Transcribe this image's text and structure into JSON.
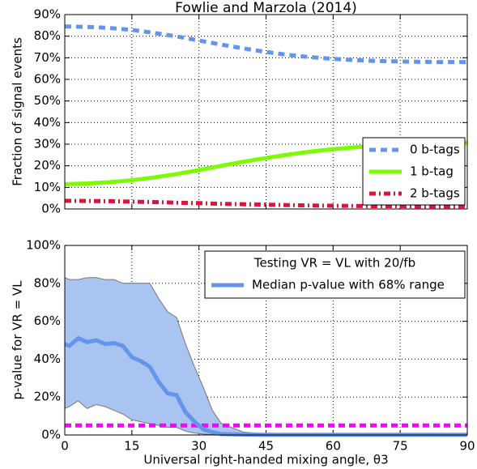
{
  "chart_data": [
    {
      "type": "line",
      "title": "Fowlie and Marzola (2014)",
      "y_label": "Fraction of signal events",
      "xlim": [
        0,
        90
      ],
      "ylim": [
        0,
        90
      ],
      "yticks": [
        {
          "value": 0,
          "label": "0%"
        },
        {
          "value": 10,
          "label": "10%"
        },
        {
          "value": 20,
          "label": "20%"
        },
        {
          "value": 30,
          "label": "30%"
        },
        {
          "value": 40,
          "label": "40%"
        },
        {
          "value": 50,
          "label": "50%"
        },
        {
          "value": 60,
          "label": "60%"
        },
        {
          "value": 70,
          "label": "70%"
        },
        {
          "value": 80,
          "label": "80%"
        },
        {
          "value": 90,
          "label": "90%"
        }
      ],
      "grid": true,
      "legend": "lower right",
      "x": [
        0,
        5,
        10,
        15,
        20,
        25,
        30,
        35,
        40,
        45,
        50,
        55,
        60,
        65,
        70,
        75,
        80,
        85,
        90
      ],
      "series": [
        {
          "name": "0 b-tags",
          "color": "#6495ed",
          "style": "dashed",
          "values": [
            84.5,
            84.3,
            83.8,
            82.9,
            81.5,
            79.9,
            78.0,
            76.1,
            74.3,
            72.7,
            71.3,
            70.3,
            69.5,
            68.9,
            68.5,
            68.3,
            68.1,
            68.0,
            68.0
          ]
        },
        {
          "name": "1 b-tag",
          "color": "#7cfc00",
          "style": "solid",
          "values": [
            11.5,
            11.8,
            12.4,
            13.3,
            14.6,
            16.2,
            18.0,
            20.0,
            21.9,
            23.6,
            25.2,
            26.6,
            27.7,
            28.6,
            29.3,
            29.8,
            30.2,
            30.4,
            30.6
          ]
        },
        {
          "name": "2 b-tags",
          "color": "#dc143c",
          "style": "dashdot",
          "values": [
            3.8,
            3.7,
            3.6,
            3.4,
            3.2,
            2.9,
            2.7,
            2.4,
            2.2,
            2.0,
            1.8,
            1.6,
            1.5,
            1.4,
            1.3,
            1.3,
            1.2,
            1.2,
            1.2
          ]
        }
      ]
    },
    {
      "type": "band",
      "x_label": "Universal right-handed mixing angle, θ3",
      "y_label": "p-value for VR = VL",
      "legend_title": "Testing VR = VL with 20/fb",
      "xlim": [
        0,
        90
      ],
      "xticks": [
        0,
        15,
        30,
        45,
        60,
        75,
        90
      ],
      "ylim": [
        0,
        100
      ],
      "yticks": [
        {
          "value": 0,
          "label": "0%"
        },
        {
          "value": 20,
          "label": "20%"
        },
        {
          "value": 40,
          "label": "40%"
        },
        {
          "value": 60,
          "label": "60%"
        },
        {
          "value": 80,
          "label": "80%"
        },
        {
          "value": 100,
          "label": "100%"
        }
      ],
      "grid": true,
      "legend": "upper right",
      "x": [
        0,
        1,
        3,
        5,
        7,
        9,
        11,
        13,
        15,
        17,
        19,
        21,
        23,
        25,
        27,
        29,
        31,
        33,
        35,
        40,
        45,
        60,
        90
      ],
      "series": [
        {
          "name": "Median p-value with 68% range",
          "color": "#6495ed",
          "band_color": "#a9c4f0",
          "values": [
            48,
            47,
            51,
            49,
            50,
            48,
            48.5,
            47,
            41,
            39,
            36,
            28,
            22,
            21,
            12,
            7,
            3,
            1.5,
            0.5,
            0.2,
            0.1,
            0.1,
            0.1
          ],
          "upper": [
            83,
            82,
            82,
            83,
            83,
            82,
            82,
            80,
            80,
            80,
            80,
            72,
            65,
            62,
            48,
            36,
            25,
            13,
            6,
            1.5,
            0.5,
            0.3,
            0.3
          ],
          "lower": [
            14,
            15,
            18,
            14,
            16,
            15,
            13,
            11,
            8,
            7,
            6,
            5,
            4,
            4,
            2,
            1,
            0.5,
            0.2,
            0.1,
            0,
            0,
            0,
            0
          ]
        }
      ],
      "hline": {
        "value": 5,
        "color": "#ff00ff"
      }
    }
  ]
}
